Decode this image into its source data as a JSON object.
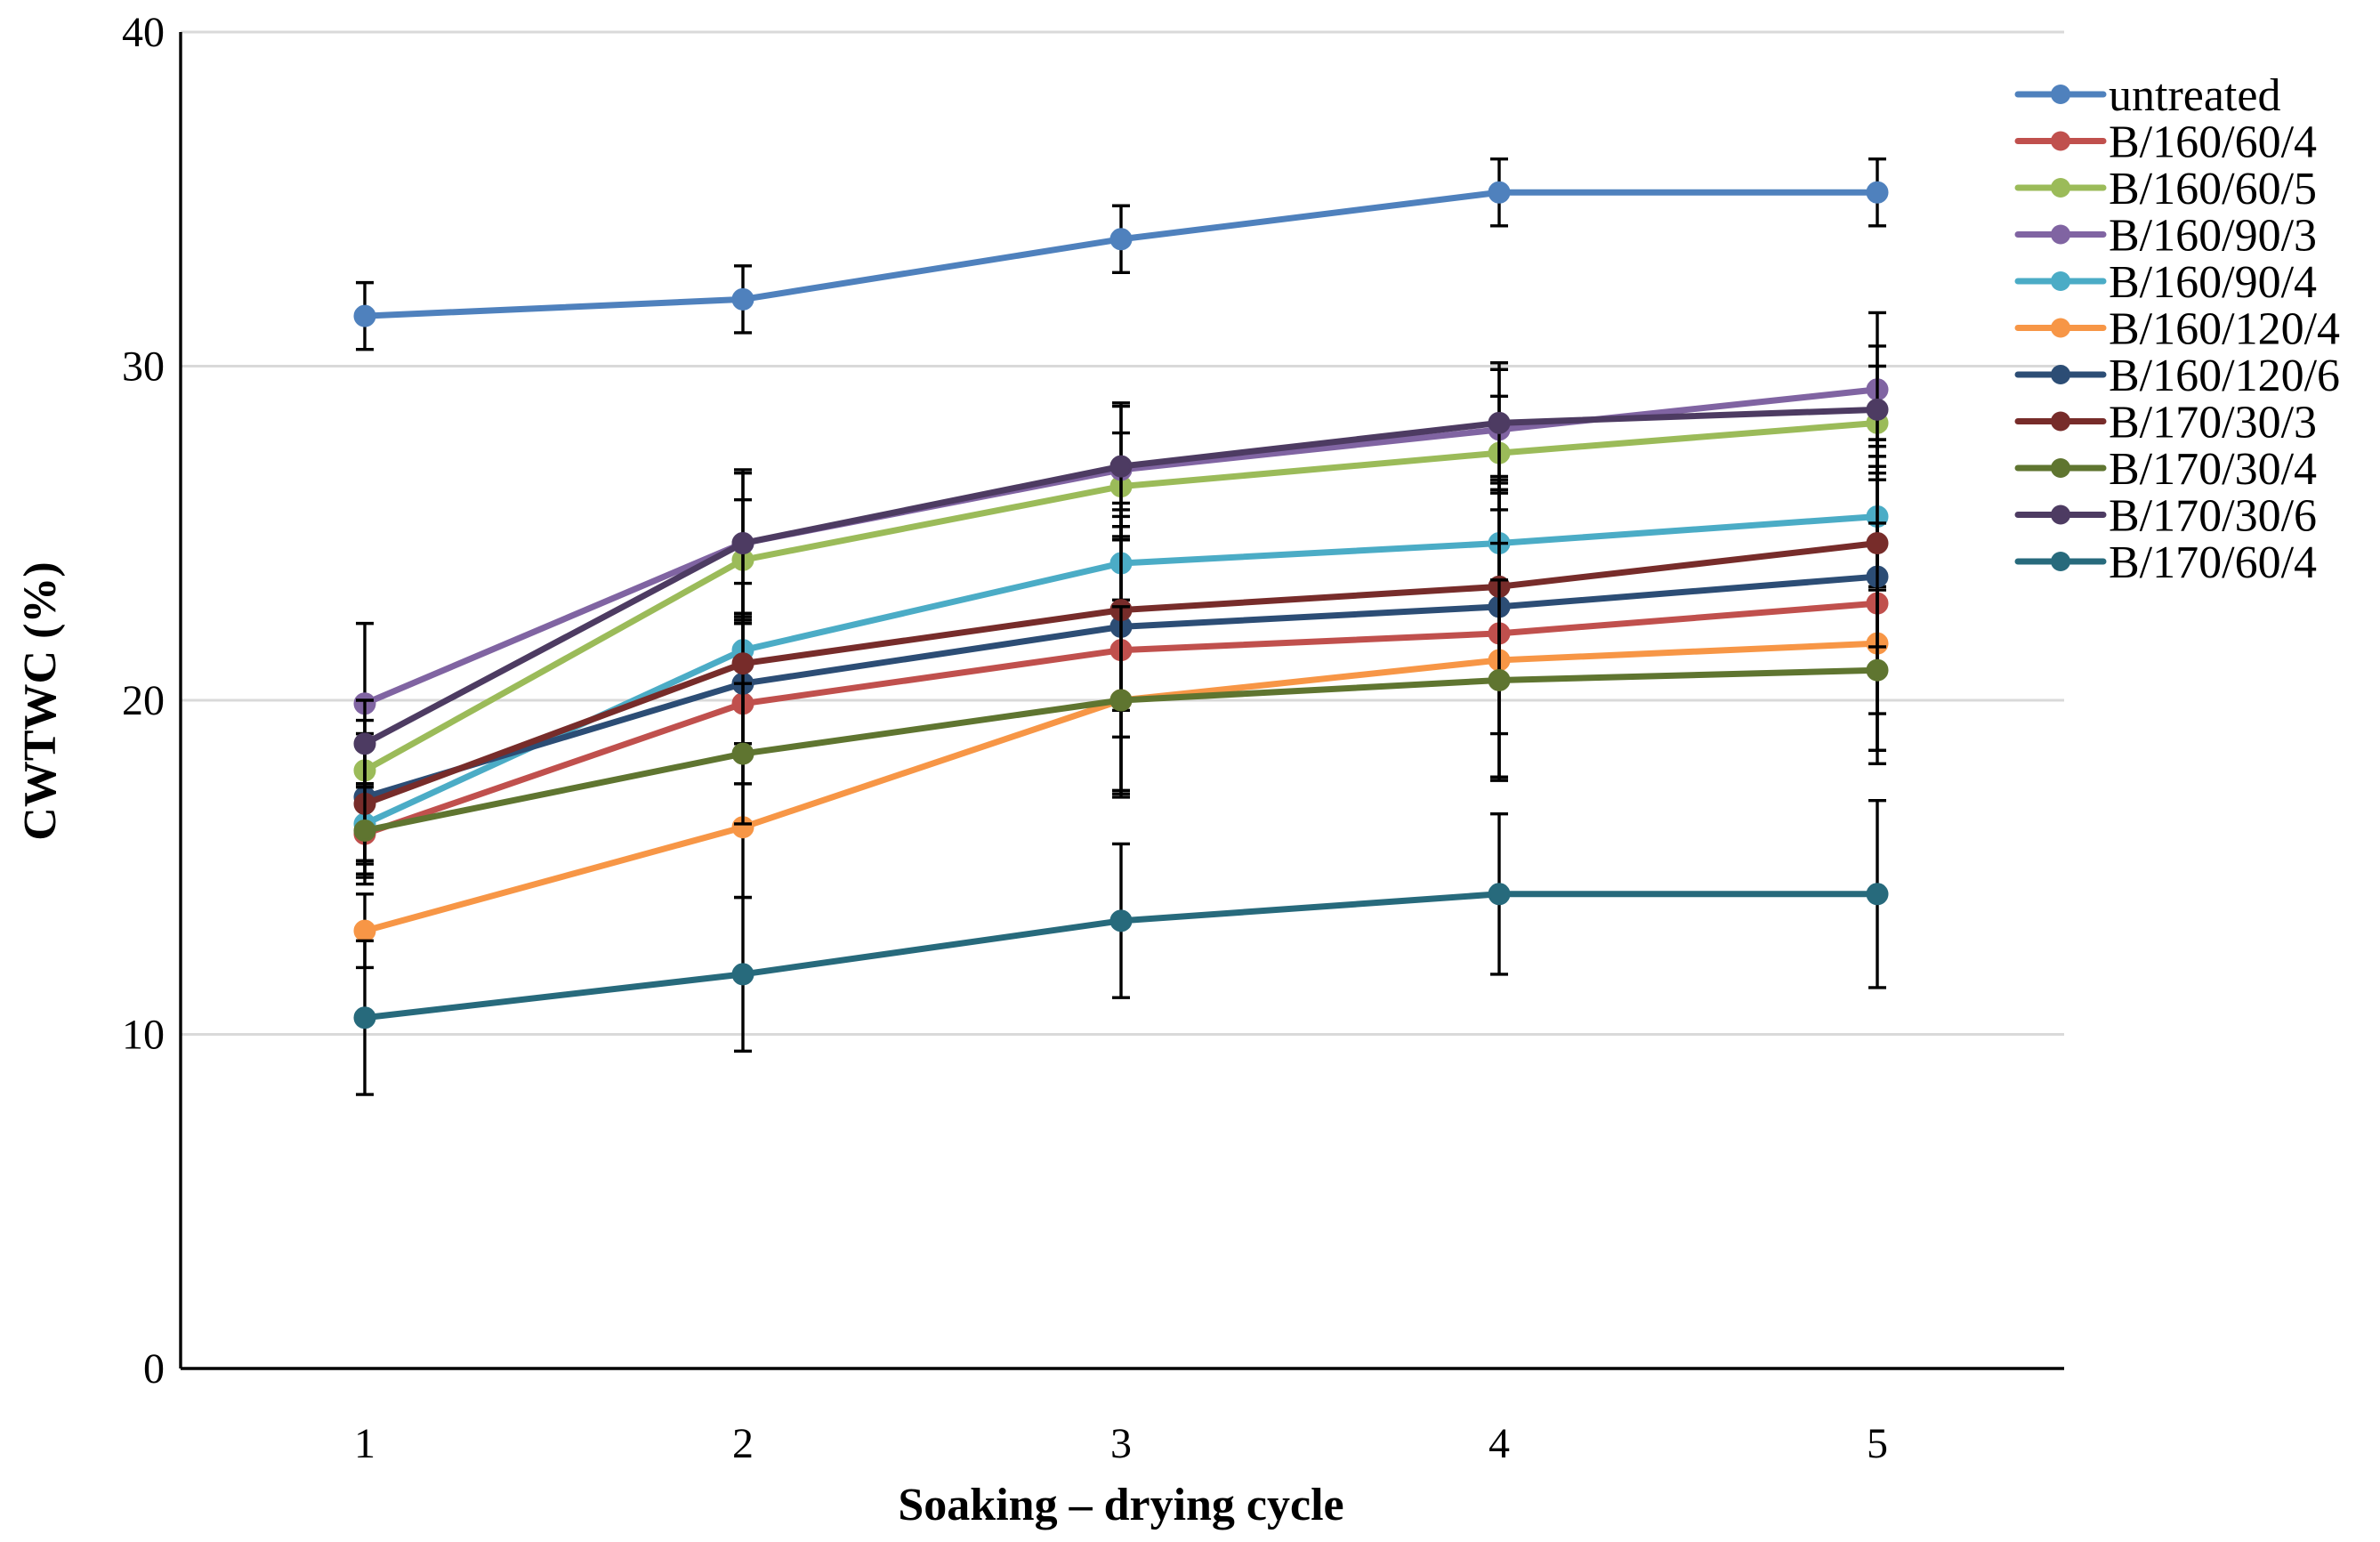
{
  "chart_data": {
    "type": "line",
    "title": "",
    "xlabel": "Soaking – drying cycle",
    "ylabel": "CWTWC (%)",
    "categories": [
      "1",
      "2",
      "3",
      "4",
      "5"
    ],
    "x": [
      1,
      2,
      3,
      4,
      5
    ],
    "ylim": [
      0,
      40
    ],
    "y_ticks": [
      0,
      10,
      20,
      30,
      40
    ],
    "grid": true,
    "legend_position": "right",
    "error_bars": true,
    "series": [
      {
        "name": "untreated",
        "color": "#4f81bd",
        "values": [
          31.5,
          32.0,
          33.8,
          35.2,
          35.2
        ],
        "errors": [
          1.0,
          1.0,
          1.0,
          1.0,
          1.0
        ]
      },
      {
        "name": "B/160/60/4",
        "color": "#c0504d",
        "values": [
          16.0,
          19.9,
          21.5,
          22.0,
          22.9
        ],
        "errors": [
          1.5,
          2.4,
          4.4,
          4.3,
          4.4
        ]
      },
      {
        "name": "B/160/60/5",
        "color": "#9bbb59",
        "values": [
          17.9,
          24.2,
          26.4,
          27.4,
          28.3
        ],
        "errors": [
          1.5,
          1.8,
          1.6,
          1.7,
          1.7
        ]
      },
      {
        "name": "B/160/90/3",
        "color": "#8064a2",
        "values": [
          19.9,
          24.7,
          26.9,
          28.1,
          29.3
        ],
        "errors": [
          2.4,
          2.2,
          2.0,
          1.8,
          2.3
        ]
      },
      {
        "name": "B/160/90/4",
        "color": "#4bacc6",
        "values": [
          16.3,
          21.5,
          24.1,
          24.7,
          25.5
        ],
        "errors": [
          1.2,
          1.1,
          1.1,
          2.0,
          2.1
        ]
      },
      {
        "name": "B/160/120/4",
        "color": "#f79646",
        "values": [
          13.1,
          16.2,
          20.0,
          21.2,
          21.7
        ],
        "errors": [
          1.1,
          2.1,
          2.7,
          3.5,
          3.6
        ]
      },
      {
        "name": "B/160/120/6",
        "color": "#2c4d75",
        "values": [
          17.1,
          20.5,
          22.2,
          22.8,
          23.7
        ],
        "errors": [
          1.9,
          1.8,
          3.3,
          3.8,
          4.1
        ]
      },
      {
        "name": "B/170/30/3",
        "color": "#772c2a",
        "values": [
          16.9,
          21.1,
          22.7,
          23.4,
          24.7
        ],
        "errors": [
          2.1,
          2.4,
          3.0,
          2.8,
          3.1
        ]
      },
      {
        "name": "B/170/30/4",
        "color": "#5f7530",
        "values": [
          16.1,
          18.4,
          20.0,
          20.6,
          20.9
        ],
        "errors": [
          1.4,
          2.1,
          2.8,
          3.0,
          2.4
        ]
      },
      {
        "name": "B/170/30/6",
        "color": "#4d3b62",
        "values": [
          18.7,
          24.7,
          27.0,
          28.3,
          28.7
        ],
        "errors": [
          1.3,
          2.1,
          1.8,
          1.8,
          1.9
        ]
      },
      {
        "name": "B/170/60/4",
        "color": "#276a7c",
        "values": [
          10.5,
          11.8,
          13.4,
          14.2,
          14.2
        ],
        "errors": [
          2.3,
          2.3,
          2.3,
          2.4,
          2.8
        ]
      }
    ]
  }
}
